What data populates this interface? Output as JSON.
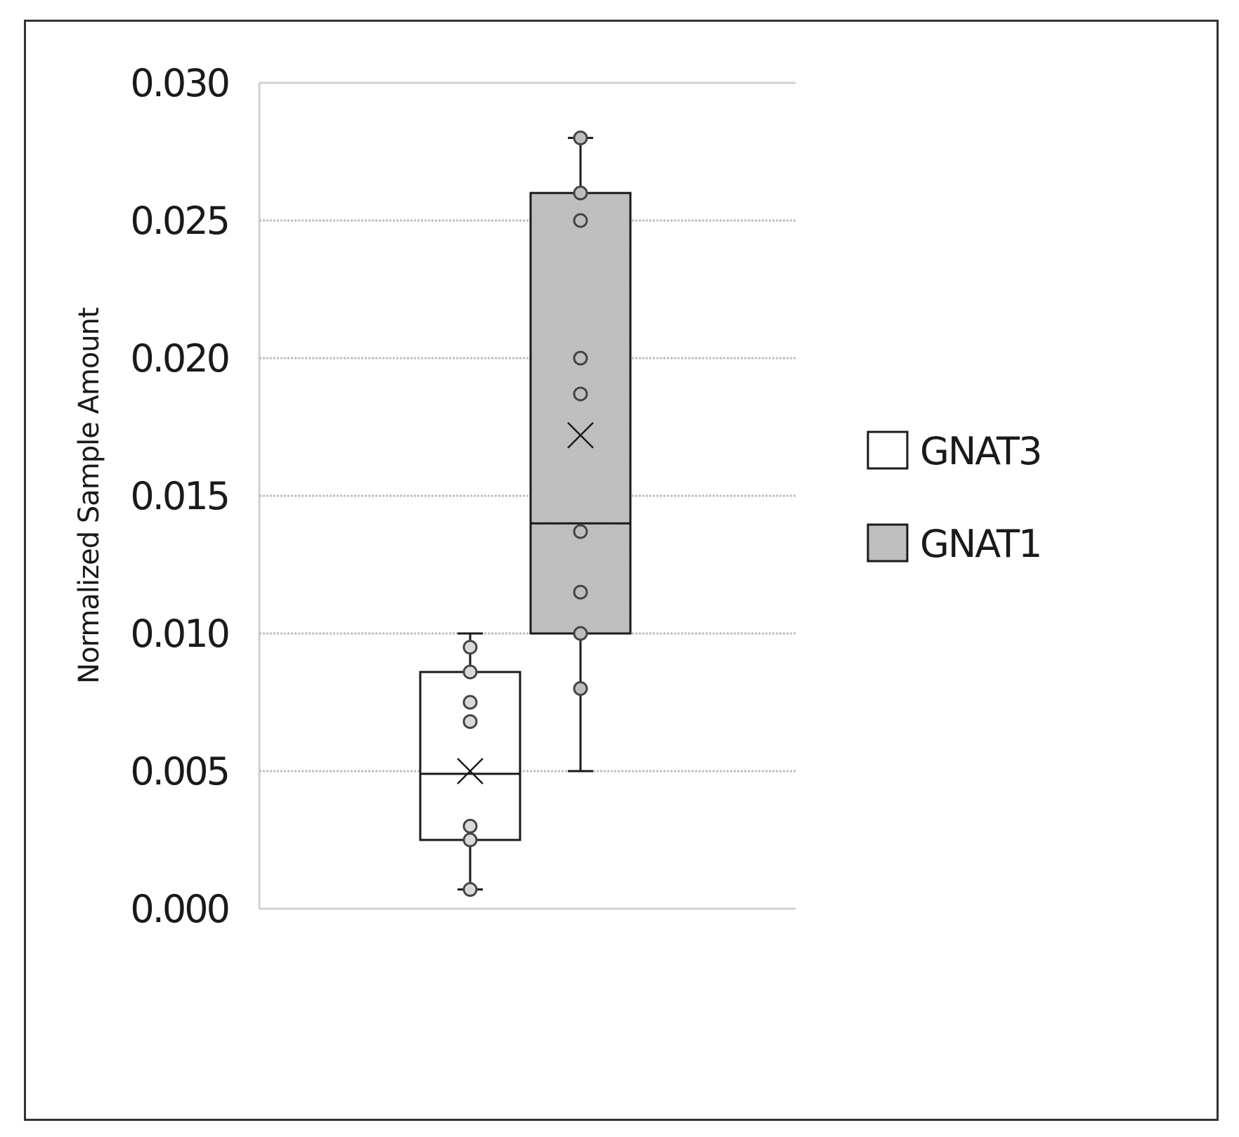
{
  "chart_data": {
    "type": "box",
    "ylabel": "Normalized Sample Amount",
    "xlabel": "",
    "ylim": [
      0,
      0.03
    ],
    "yticks": [
      "0.000",
      "0.005",
      "0.010",
      "0.015",
      "0.020",
      "0.025",
      "0.030"
    ],
    "ytick_values": [
      0,
      0.005,
      0.01,
      0.015,
      0.02,
      0.025,
      0.03
    ],
    "grid": true,
    "legend_position": "right",
    "series": [
      {
        "name": "GNAT3",
        "fill": "#ffffff",
        "whisker_low": 0.0007,
        "q1": 0.0025,
        "median": 0.0049,
        "q3": 0.0086,
        "whisker_high": 0.01,
        "mean": 0.005,
        "points": [
          0.0007,
          0.0025,
          0.003,
          0.0068,
          0.0075,
          0.0086,
          0.0095
        ]
      },
      {
        "name": "GNAT1",
        "fill": "#bdbdbd",
        "whisker_low": 0.005,
        "q1": 0.01,
        "median": 0.014,
        "q3": 0.026,
        "whisker_high": 0.028,
        "mean": 0.0172,
        "points": [
          0.008,
          0.01,
          0.0115,
          0.0137,
          0.0187,
          0.02,
          0.025,
          0.026,
          0.028
        ]
      }
    ]
  }
}
